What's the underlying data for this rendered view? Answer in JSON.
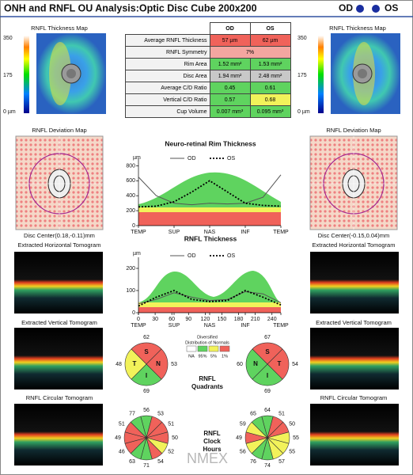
{
  "header": {
    "title": "ONH and RNFL OU Analysis:Optic Disc Cube 200x200",
    "od": "OD",
    "os": "OS"
  },
  "left": {
    "thickness_map": "RNFL Thickness Map",
    "scale": [
      "350",
      "175",
      "0 µm"
    ],
    "deviation_map": "RNFL Deviation Map",
    "disc_center": "Disc Center(0.18,-0.11)mm",
    "horizontal": "Extracted Horizontal Tomogram",
    "vertical": "Extracted Vertical Tomogram",
    "circular": "RNFL Circular Tomogram"
  },
  "right": {
    "thickness_map": "RNFL Thickness Map",
    "scale": [
      "350",
      "175",
      "0 µm"
    ],
    "deviation_map": "RNFL Deviation Map",
    "disc_center": "Disc Center(-0.15,0.04)mm",
    "horizontal": "Extracted Horizontal Tomogram",
    "vertical": "Extracted Vertical Tomogram",
    "circular": "RNFL Circular Tomogram"
  },
  "table": {
    "header": [
      "OD",
      "OS"
    ],
    "rows": [
      {
        "label": "Average RNFL Thickness",
        "od": "57 µm",
        "os": "62 µm",
        "od_color": "#f0625a",
        "os_color": "#f0625a"
      },
      {
        "label": "RNFL Symmetry",
        "value": "7%",
        "color": "#f4a6a0"
      },
      {
        "label": "Rim Area",
        "od": "1.52 mm²",
        "os": "1.53 mm²",
        "od_color": "#5fd35f",
        "os_color": "#5fd35f"
      },
      {
        "label": "Disc Area",
        "od": "1.94 mm²",
        "os": "2.48 mm²",
        "od_color": "#c8c8c8",
        "os_color": "#c8c8c8"
      },
      {
        "label": "Average C/D Ratio",
        "od": "0.45",
        "os": "0.61",
        "od_color": "#5fd35f",
        "os_color": "#5fd35f"
      },
      {
        "label": "Vertical C/D Ratio",
        "od": "0.57",
        "os": "0.68",
        "od_color": "#5fd35f",
        "os_color": "#f2f25a"
      },
      {
        "label": "Cup Volume",
        "od": "0.007 mm³",
        "os": "0.095 mm³",
        "od_color": "#5fd35f",
        "os_color": "#5fd35f"
      }
    ]
  },
  "rim_chart": {
    "type": "line",
    "title": "Neuro-retinal Rim Thickness",
    "y_label": "µm",
    "x": [
      0,
      32,
      64,
      96,
      128,
      160,
      192,
      224,
      256
    ],
    "xlim": [
      0,
      256
    ],
    "xticks": [
      {
        "value": 0,
        "label": "TEMP"
      },
      {
        "value": 64,
        "label": "SUP"
      },
      {
        "value": 128,
        "label": "NAS"
      },
      {
        "value": 192,
        "label": "INF"
      },
      {
        "value": 256,
        "label": "TEMP"
      }
    ],
    "ylim": [
      0,
      900
    ],
    "yticks": [
      0,
      200,
      400,
      600,
      800
    ],
    "series": [
      {
        "name": "OD",
        "color": "#555555",
        "style": "solid",
        "values": [
          650,
          400,
          300,
          280,
          300,
          290,
          300,
          380,
          680
        ]
      },
      {
        "name": "OS",
        "color": "#000000",
        "style": "dotted",
        "values": [
          250,
          260,
          320,
          450,
          600,
          450,
          300,
          270,
          260
        ]
      }
    ]
  },
  "rnfl_chart": {
    "type": "line",
    "title": "RNFL Thickness",
    "y_label": "µm",
    "x": [
      0,
      32,
      64,
      96,
      128,
      160,
      192,
      224,
      256
    ],
    "xlim": [
      0,
      256
    ],
    "xticks": [
      0,
      30,
      60,
      90,
      120,
      150,
      180,
      210,
      240
    ],
    "region_ticks": [
      {
        "value": 0,
        "label": "TEMP"
      },
      {
        "value": 64,
        "label": "SUP"
      },
      {
        "value": 128,
        "label": "NAS"
      },
      {
        "value": 192,
        "label": "INF"
      },
      {
        "value": 256,
        "label": "TEMP"
      }
    ],
    "ylim": [
      0,
      250
    ],
    "yticks": [
      0,
      100,
      200
    ],
    "series": [
      {
        "name": "OD",
        "color": "#555555",
        "style": "solid",
        "values": [
          40,
          60,
          90,
          70,
          55,
          60,
          95,
          85,
          45
        ]
      },
      {
        "name": "OS",
        "color": "#000000",
        "style": "dotted",
        "values": [
          30,
          70,
          100,
          60,
          50,
          55,
          100,
          70,
          35
        ]
      }
    ]
  },
  "normals": {
    "title": [
      "Diversified",
      "Distribution of Normals"
    ],
    "labels": [
      "NA",
      "95%",
      "5%",
      "1%"
    ],
    "colors": [
      "#ffffff",
      "#5fd35f",
      "#f2f25a",
      "#f0625a"
    ]
  },
  "quadrants": {
    "title": [
      "RNFL",
      "Quadrants"
    ],
    "od": [
      {
        "label": "S",
        "value": 62,
        "color": "#f0625a"
      },
      {
        "label": "N",
        "value": 53,
        "color": "#f0625a"
      },
      {
        "label": "I",
        "value": 69,
        "color": "#5fd35f"
      },
      {
        "label": "T",
        "value": 48,
        "color": "#f2f25a"
      }
    ],
    "os": [
      {
        "label": "S",
        "value": 67,
        "color": "#f0625a"
      },
      {
        "label": "T",
        "value": 54,
        "color": "#f0625a"
      },
      {
        "label": "I",
        "value": 69,
        "color": "#5fd35f"
      },
      {
        "label": "N",
        "value": 60,
        "color": "#5fd35f"
      }
    ]
  },
  "clock": {
    "title": [
      "RNFL",
      "Clock",
      "Hours"
    ],
    "od": {
      "values": [
        56,
        53,
        51,
        50,
        52,
        54,
        71,
        63,
        46,
        49,
        51,
        77
      ],
      "colors": [
        "#5fd35f",
        "#f0625a",
        "#f0625a",
        "#f0625a",
        "#f2f25a",
        "#f0625a",
        "#5fd35f",
        "#5fd35f",
        "#f0625a",
        "#f0625a",
        "#f0625a",
        "#5fd35f"
      ]
    },
    "os": {
      "values": [
        64,
        51,
        50,
        55,
        55,
        57,
        74,
        76,
        56,
        49,
        59,
        65
      ],
      "colors": [
        "#5fd35f",
        "#f0625a",
        "#f0625a",
        "#f2f25a",
        "#f2f25a",
        "#f2f25a",
        "#5fd35f",
        "#5fd35f",
        "#f2f25a",
        "#f0625a",
        "#f2f25a",
        "#5fd35f"
      ]
    }
  },
  "watermark": "NMEX"
}
